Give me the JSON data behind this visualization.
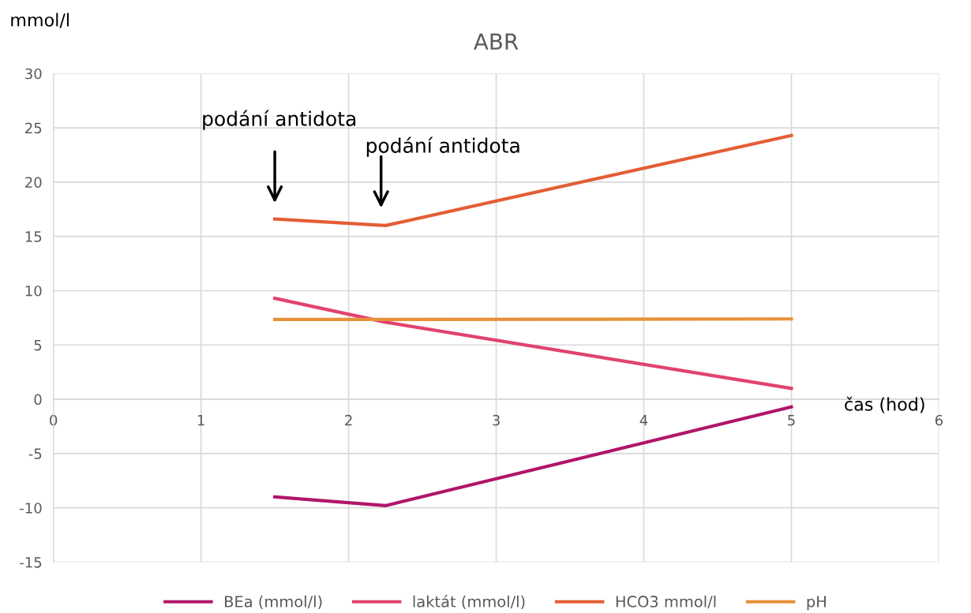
{
  "chart_data": {
    "type": "line",
    "title": "ABR",
    "xlabel": "čas (hod)",
    "ylabel": "mmol/l",
    "x": [
      1.5,
      2.25,
      5
    ],
    "series": [
      {
        "name": "BEa (mmol/l)",
        "color": "#b0166a",
        "values": [
          -9.0,
          -9.8,
          -0.7
        ]
      },
      {
        "name": "laktát (mmol/l)",
        "color": "#e2426f",
        "values": [
          9.3,
          7.1,
          1.0
        ]
      },
      {
        "name": "HCO3 mmol/l",
        "color": "#e35e35",
        "values": [
          16.6,
          16.0,
          24.3
        ]
      },
      {
        "name": "pH",
        "color": "#e8913a",
        "values": [
          7.35,
          7.35,
          7.4
        ]
      }
    ],
    "xlim": [
      0,
      6
    ],
    "xticks": [
      0,
      1,
      2,
      3,
      4,
      5,
      6
    ],
    "ylim": [
      -15,
      30
    ],
    "yticks": [
      -15,
      -10,
      -5,
      0,
      5,
      10,
      15,
      20,
      25,
      30
    ],
    "annotations": [
      "podání antidota",
      "podání antidota"
    ],
    "grid": true,
    "legend": "bottom",
    "marker": "none",
    "line_style": "solid"
  }
}
